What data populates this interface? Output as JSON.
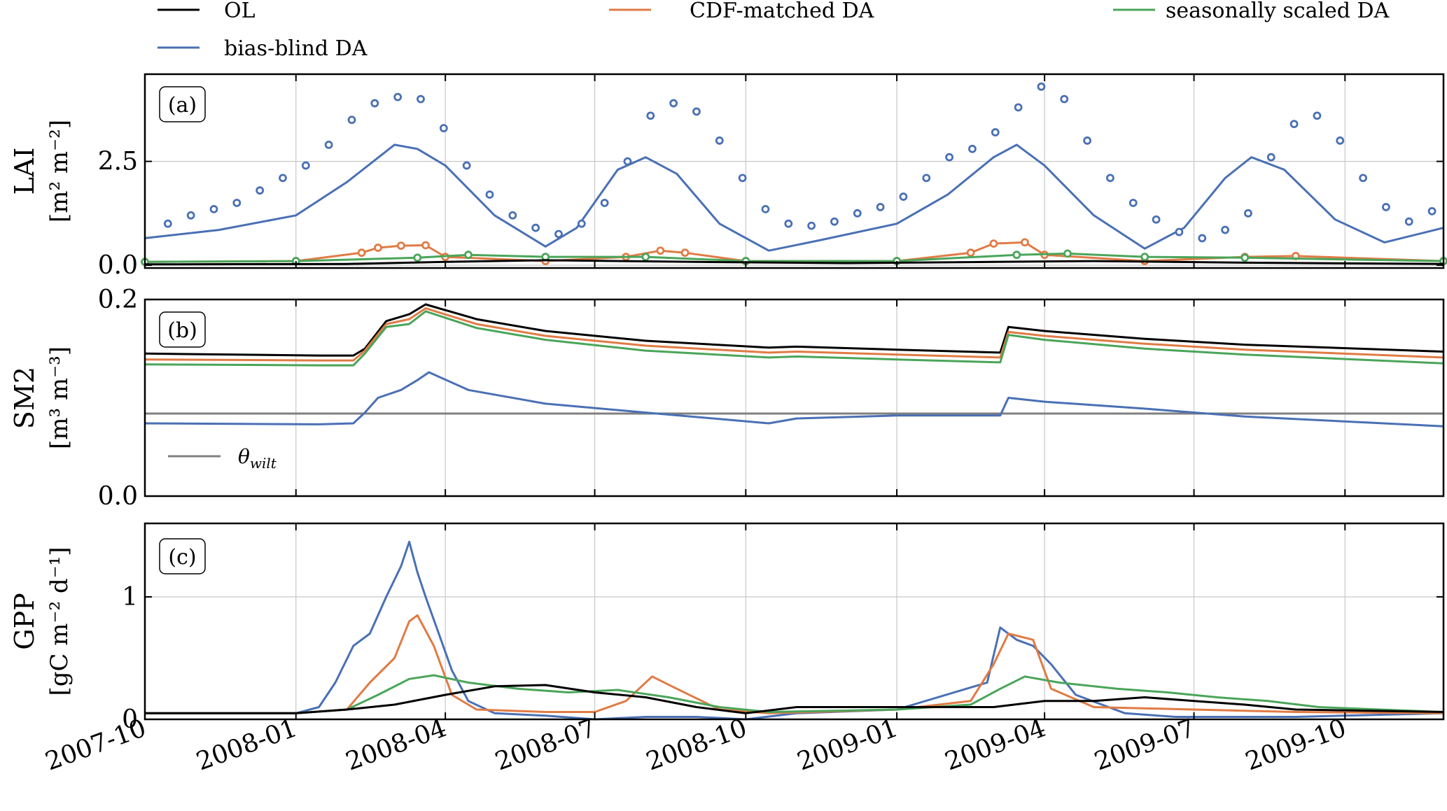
{
  "legend": {
    "placement": "top",
    "items": [
      {
        "label": "OL",
        "color": "#000000"
      },
      {
        "label": "CDF-matched DA",
        "color": "#e07b45"
      },
      {
        "label": "seasonally scaled DA",
        "color": "#4aa55a"
      },
      {
        "label": "bias-blind DA",
        "color": "#4a70b4"
      }
    ]
  },
  "x_axis": {
    "tick_labels": [
      "2007-10",
      "2008-01",
      "2008-04",
      "2008-07",
      "2008-10",
      "2009-01",
      "2009-04",
      "2009-07",
      "2009-10"
    ]
  },
  "colors": {
    "ol": "#000000",
    "cdf": "#e07b45",
    "seasonal": "#4aa55a",
    "blind": "#4a70b4",
    "wilt": "#808080",
    "grid": "#c8c8c8"
  },
  "chart_data": [
    {
      "type": "line",
      "panel_label": "(a)",
      "ylabel_line1": "LAI",
      "ylabel_line2": "[m² m⁻²]",
      "ylim": [
        0,
        4.6
      ],
      "yticks": [
        {
          "value": 0.0,
          "label": "0.0"
        },
        {
          "value": 2.5,
          "label": "2.5"
        }
      ],
      "xlim": [
        "2007-10-01",
        "2009-11-30"
      ],
      "grid": true,
      "series": [
        {
          "key": "blind",
          "style": "line",
          "x": [
            "2007-10-01",
            "2007-11-15",
            "2008-01-01",
            "2008-02-01",
            "2008-03-01",
            "2008-03-15",
            "2008-04-01",
            "2008-05-01",
            "2008-06-01",
            "2008-06-20",
            "2008-07-15",
            "2008-08-01",
            "2008-08-20",
            "2008-09-15",
            "2008-10-15",
            "2008-11-15",
            "2009-01-01",
            "2009-02-01",
            "2009-03-01",
            "2009-03-15",
            "2009-04-01",
            "2009-05-01",
            "2009-06-01",
            "2009-06-25",
            "2009-07-20",
            "2009-08-05",
            "2009-08-25",
            "2009-09-25",
            "2009-10-25",
            "2009-11-30"
          ],
          "y": [
            0.65,
            0.85,
            1.2,
            2.0,
            2.9,
            2.8,
            2.4,
            1.2,
            0.45,
            0.9,
            2.3,
            2.6,
            2.2,
            1.0,
            0.35,
            0.6,
            1.0,
            1.7,
            2.6,
            2.9,
            2.4,
            1.2,
            0.4,
            0.9,
            2.1,
            2.6,
            2.3,
            1.1,
            0.55,
            0.9
          ]
        },
        {
          "key": "blind",
          "style": "markers",
          "x": [
            "2007-10-15",
            "2007-10-29",
            "2007-11-12",
            "2007-11-26",
            "2007-12-10",
            "2007-12-24",
            "2008-01-07",
            "2008-01-21",
            "2008-02-04",
            "2008-02-18",
            "2008-03-03",
            "2008-03-17",
            "2008-03-31",
            "2008-04-14",
            "2008-04-28",
            "2008-05-12",
            "2008-05-26",
            "2008-06-09",
            "2008-06-23",
            "2008-07-07",
            "2008-07-21",
            "2008-08-04",
            "2008-08-18",
            "2008-09-01",
            "2008-09-15",
            "2008-09-29",
            "2008-10-13",
            "2008-10-27",
            "2008-11-10",
            "2008-11-24",
            "2008-12-08",
            "2008-12-22",
            "2009-01-05",
            "2009-01-19",
            "2009-02-02",
            "2009-02-16",
            "2009-03-02",
            "2009-03-16",
            "2009-03-30",
            "2009-04-13",
            "2009-04-27",
            "2009-05-11",
            "2009-05-25",
            "2009-06-08",
            "2009-06-22",
            "2009-07-06",
            "2009-07-20",
            "2009-08-03",
            "2009-08-17",
            "2009-08-31",
            "2009-09-14",
            "2009-09-28",
            "2009-10-12",
            "2009-10-26",
            "2009-11-09",
            "2009-11-23"
          ],
          "y": [
            1.0,
            1.2,
            1.35,
            1.5,
            1.8,
            2.1,
            2.4,
            2.9,
            3.5,
            3.9,
            4.05,
            4.0,
            3.3,
            2.4,
            1.7,
            1.2,
            0.9,
            0.75,
            1.0,
            1.5,
            2.5,
            3.6,
            3.9,
            3.7,
            3.0,
            2.1,
            1.35,
            1.0,
            0.95,
            1.05,
            1.25,
            1.4,
            1.65,
            2.1,
            2.6,
            2.8,
            3.2,
            3.8,
            4.3,
            4.0,
            3.0,
            2.1,
            1.5,
            1.1,
            0.8,
            0.65,
            0.85,
            1.25,
            2.6,
            3.4,
            3.6,
            3.0,
            2.1,
            1.4,
            1.05,
            1.3
          ]
        },
        {
          "key": "cdf",
          "style": "line+markers",
          "x": [
            "2007-10-01",
            "2008-01-01",
            "2008-02-10",
            "2008-02-20",
            "2008-03-05",
            "2008-03-20",
            "2008-04-01",
            "2008-06-01",
            "2008-07-20",
            "2008-08-10",
            "2008-08-25",
            "2008-10-01",
            "2009-01-01",
            "2009-02-15",
            "2009-03-01",
            "2009-03-20",
            "2009-04-01",
            "2009-06-01",
            "2009-08-01",
            "2009-09-01",
            "2009-11-30"
          ],
          "y": [
            0.08,
            0.1,
            0.3,
            0.42,
            0.47,
            0.48,
            0.2,
            0.1,
            0.2,
            0.35,
            0.3,
            0.1,
            0.1,
            0.3,
            0.52,
            0.55,
            0.25,
            0.1,
            0.2,
            0.22,
            0.1
          ]
        },
        {
          "key": "seasonal",
          "style": "line+markers",
          "x": [
            "2007-10-01",
            "2008-01-01",
            "2008-03-15",
            "2008-04-15",
            "2008-06-01",
            "2008-08-01",
            "2008-10-01",
            "2009-01-01",
            "2009-03-15",
            "2009-04-15",
            "2009-06-01",
            "2009-08-01",
            "2009-11-30"
          ],
          "y": [
            0.08,
            0.1,
            0.18,
            0.25,
            0.2,
            0.2,
            0.1,
            0.1,
            0.25,
            0.28,
            0.2,
            0.18,
            0.1
          ]
        },
        {
          "key": "ol",
          "style": "line",
          "x": [
            "2007-10-01",
            "2008-02-01",
            "2008-04-01",
            "2008-06-01",
            "2008-09-01",
            "2008-12-01",
            "2009-03-01",
            "2009-05-01",
            "2009-08-01",
            "2009-11-30"
          ],
          "y": [
            0.02,
            0.03,
            0.08,
            0.12,
            0.08,
            0.05,
            0.08,
            0.1,
            0.06,
            0.03
          ]
        }
      ]
    },
    {
      "type": "line",
      "panel_label": "(b)",
      "ylabel_line1": "SM2",
      "ylabel_line2": "[m³ m⁻³]",
      "ylim": [
        0,
        0.2
      ],
      "yticks": [
        {
          "value": 0.0,
          "label": "0.0"
        },
        {
          "value": 0.2,
          "label": "0.2"
        }
      ],
      "xlim": [
        "2007-10-01",
        "2009-11-30"
      ],
      "grid": true,
      "legend_entries": [
        {
          "label": "θ",
          "subscript": "wilt",
          "color": "#808080"
        }
      ],
      "hlines": [
        {
          "key": "wilt",
          "y": 0.084
        }
      ],
      "series": [
        {
          "key": "ol",
          "style": "line",
          "x": [
            "2007-10-01",
            "2008-01-15",
            "2008-02-05",
            "2008-02-12",
            "2008-02-25",
            "2008-03-10",
            "2008-03-20",
            "2008-04-20",
            "2008-06-01",
            "2008-08-01",
            "2008-10-15",
            "2008-11-01",
            "2009-01-01",
            "2009-03-05",
            "2009-03-10",
            "2009-04-01",
            "2009-06-01",
            "2009-08-01",
            "2009-11-30"
          ],
          "y": [
            0.145,
            0.143,
            0.143,
            0.15,
            0.178,
            0.185,
            0.195,
            0.18,
            0.168,
            0.158,
            0.151,
            0.152,
            0.149,
            0.146,
            0.172,
            0.168,
            0.16,
            0.154,
            0.147
          ]
        },
        {
          "key": "cdf",
          "style": "line",
          "x": [
            "2007-10-01",
            "2008-01-15",
            "2008-02-05",
            "2008-02-12",
            "2008-02-25",
            "2008-03-10",
            "2008-03-20",
            "2008-04-20",
            "2008-06-01",
            "2008-08-01",
            "2008-10-15",
            "2008-11-01",
            "2009-01-01",
            "2009-03-05",
            "2009-03-10",
            "2009-04-01",
            "2009-06-01",
            "2009-08-01",
            "2009-11-30"
          ],
          "y": [
            0.139,
            0.138,
            0.138,
            0.148,
            0.175,
            0.18,
            0.191,
            0.175,
            0.163,
            0.153,
            0.146,
            0.147,
            0.144,
            0.141,
            0.167,
            0.163,
            0.155,
            0.149,
            0.141
          ]
        },
        {
          "key": "seasonal",
          "style": "line",
          "x": [
            "2007-10-01",
            "2008-01-15",
            "2008-02-05",
            "2008-02-12",
            "2008-02-25",
            "2008-03-10",
            "2008-03-20",
            "2008-04-20",
            "2008-06-01",
            "2008-08-01",
            "2008-10-15",
            "2008-11-01",
            "2009-01-01",
            "2009-03-05",
            "2009-03-10",
            "2009-04-01",
            "2009-06-01",
            "2009-08-01",
            "2009-11-30"
          ],
          "y": [
            0.134,
            0.133,
            0.133,
            0.145,
            0.172,
            0.175,
            0.188,
            0.171,
            0.159,
            0.148,
            0.141,
            0.142,
            0.139,
            0.136,
            0.164,
            0.159,
            0.15,
            0.144,
            0.135
          ]
        },
        {
          "key": "blind",
          "style": "line",
          "x": [
            "2007-10-01",
            "2008-01-15",
            "2008-02-05",
            "2008-02-12",
            "2008-02-20",
            "2008-03-05",
            "2008-03-15",
            "2008-03-22",
            "2008-04-15",
            "2008-06-01",
            "2008-08-01",
            "2008-10-15",
            "2008-11-01",
            "2009-01-01",
            "2009-03-05",
            "2009-03-10",
            "2009-04-01",
            "2009-06-01",
            "2009-08-01",
            "2009-11-30"
          ],
          "y": [
            0.074,
            0.073,
            0.074,
            0.085,
            0.1,
            0.108,
            0.118,
            0.126,
            0.108,
            0.094,
            0.085,
            0.074,
            0.079,
            0.082,
            0.082,
            0.1,
            0.096,
            0.089,
            0.081,
            0.071
          ]
        }
      ]
    },
    {
      "type": "line",
      "panel_label": "(c)",
      "ylabel_line1": "GPP",
      "ylabel_line2": "[gC m⁻² d⁻¹]",
      "ylim": [
        0,
        1.6
      ],
      "yticks": [
        {
          "value": 0,
          "label": "0"
        },
        {
          "value": 1,
          "label": "1"
        }
      ],
      "xlim": [
        "2007-10-01",
        "2009-11-30"
      ],
      "grid": true,
      "series": [
        {
          "key": "blind",
          "style": "line",
          "x": [
            "2007-10-01",
            "2008-01-01",
            "2008-01-15",
            "2008-01-25",
            "2008-02-05",
            "2008-02-15",
            "2008-02-25",
            "2008-03-05",
            "2008-03-10",
            "2008-03-15",
            "2008-03-20",
            "2008-03-28",
            "2008-04-05",
            "2008-04-15",
            "2008-05-01",
            "2008-06-01",
            "2008-07-01",
            "2008-08-01",
            "2008-09-01",
            "2008-10-01",
            "2008-11-01",
            "2009-01-01",
            "2009-02-25",
            "2009-03-05",
            "2009-03-15",
            "2009-03-25",
            "2009-04-05",
            "2009-04-20",
            "2009-05-20",
            "2009-06-20",
            "2009-09-01",
            "2009-11-30"
          ],
          "y": [
            0.05,
            0.05,
            0.1,
            0.3,
            0.6,
            0.7,
            1.0,
            1.25,
            1.45,
            1.2,
            1.0,
            0.7,
            0.4,
            0.15,
            0.05,
            0.03,
            0.0,
            0.02,
            0.02,
            0.0,
            0.05,
            0.08,
            0.3,
            0.75,
            0.65,
            0.6,
            0.45,
            0.2,
            0.05,
            0.02,
            0.02,
            0.05
          ]
        },
        {
          "key": "cdf",
          "style": "line",
          "x": [
            "2007-10-01",
            "2008-01-01",
            "2008-02-01",
            "2008-02-15",
            "2008-03-01",
            "2008-03-10",
            "2008-03-15",
            "2008-03-25",
            "2008-04-05",
            "2008-04-20",
            "2008-06-01",
            "2008-07-01",
            "2008-07-20",
            "2008-08-05",
            "2008-08-20",
            "2008-09-15",
            "2008-10-15",
            "2009-01-01",
            "2009-02-15",
            "2009-03-01",
            "2009-03-10",
            "2009-03-25",
            "2009-04-05",
            "2009-05-01",
            "2009-07-01",
            "2009-09-01",
            "2009-11-30"
          ],
          "y": [
            0.05,
            0.05,
            0.08,
            0.3,
            0.5,
            0.8,
            0.85,
            0.6,
            0.2,
            0.08,
            0.06,
            0.06,
            0.15,
            0.35,
            0.25,
            0.08,
            0.05,
            0.08,
            0.15,
            0.45,
            0.7,
            0.65,
            0.25,
            0.1,
            0.08,
            0.06,
            0.05
          ]
        },
        {
          "key": "seasonal",
          "style": "line",
          "x": [
            "2007-10-01",
            "2008-01-01",
            "2008-02-01",
            "2008-02-20",
            "2008-03-10",
            "2008-03-25",
            "2008-04-15",
            "2008-05-15",
            "2008-06-15",
            "2008-07-15",
            "2008-08-15",
            "2008-09-15",
            "2008-10-15",
            "2009-01-01",
            "2009-02-15",
            "2009-03-05",
            "2009-03-20",
            "2009-04-10",
            "2009-05-15",
            "2009-06-15",
            "2009-07-15",
            "2009-08-15",
            "2009-09-15",
            "2009-11-30"
          ],
          "y": [
            0.05,
            0.05,
            0.08,
            0.2,
            0.33,
            0.36,
            0.3,
            0.25,
            0.22,
            0.24,
            0.18,
            0.1,
            0.06,
            0.08,
            0.12,
            0.25,
            0.35,
            0.3,
            0.25,
            0.22,
            0.18,
            0.15,
            0.1,
            0.06
          ]
        },
        {
          "key": "ol",
          "style": "line",
          "x": [
            "2007-10-01",
            "2008-01-01",
            "2008-02-01",
            "2008-03-01",
            "2008-04-01",
            "2008-05-01",
            "2008-06-01",
            "2008-07-01",
            "2008-08-01",
            "2008-09-01",
            "2008-10-01",
            "2008-11-01",
            "2009-01-01",
            "2009-03-01",
            "2009-04-01",
            "2009-05-01",
            "2009-06-01",
            "2009-07-01",
            "2009-08-01",
            "2009-09-01",
            "2009-11-30"
          ],
          "y": [
            0.05,
            0.05,
            0.08,
            0.12,
            0.2,
            0.27,
            0.28,
            0.22,
            0.18,
            0.1,
            0.05,
            0.1,
            0.1,
            0.1,
            0.15,
            0.15,
            0.18,
            0.15,
            0.12,
            0.08,
            0.06
          ]
        }
      ]
    }
  ]
}
